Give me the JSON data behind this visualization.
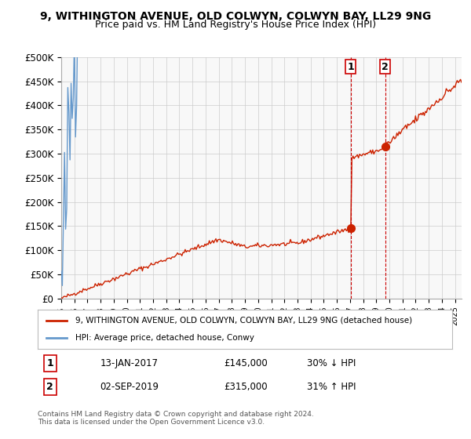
{
  "title": "9, WITHINGTON AVENUE, OLD COLWYN, COLWYN BAY, LL29 9NG",
  "subtitle": "Price paid vs. HM Land Registry's House Price Index (HPI)",
  "ylabel_ticks": [
    "£0",
    "£50K",
    "£100K",
    "£150K",
    "£200K",
    "£250K",
    "£300K",
    "£350K",
    "£400K",
    "£450K",
    "£500K"
  ],
  "ylim": [
    0,
    500000
  ],
  "xlim_start": 1995.0,
  "xlim_end": 2025.5,
  "transaction1": {
    "date_num": 2017.04,
    "price": 145000,
    "label": "1",
    "pct": "30% ↓ HPI",
    "date_str": "13-JAN-2017"
  },
  "transaction2": {
    "date_num": 2019.67,
    "price": 315000,
    "label": "2",
    "pct": "31% ↑ HPI",
    "date_str": "02-SEP-2019"
  },
  "hpi_color": "#6699cc",
  "property_color": "#cc2200",
  "vline_color": "#cc0000",
  "point_color": "#cc2200",
  "legend_box_color": "#cc2200",
  "legend_hpi_color": "#6699cc",
  "background_color": "#f8f8f8",
  "grid_color": "#cccccc",
  "label1_color": "#cc2200",
  "transaction_table": [
    {
      "num": "1",
      "date": "13-JAN-2017",
      "price": "£145,000",
      "hpi": "30% ↓ HPI"
    },
    {
      "num": "2",
      "date": "02-SEP-2019",
      "price": "£315,000",
      "hpi": "31% ↑ HPI"
    }
  ],
  "footer": "Contains HM Land Registry data © Crown copyright and database right 2024.\nThis data is licensed under the Open Government Licence v3.0."
}
